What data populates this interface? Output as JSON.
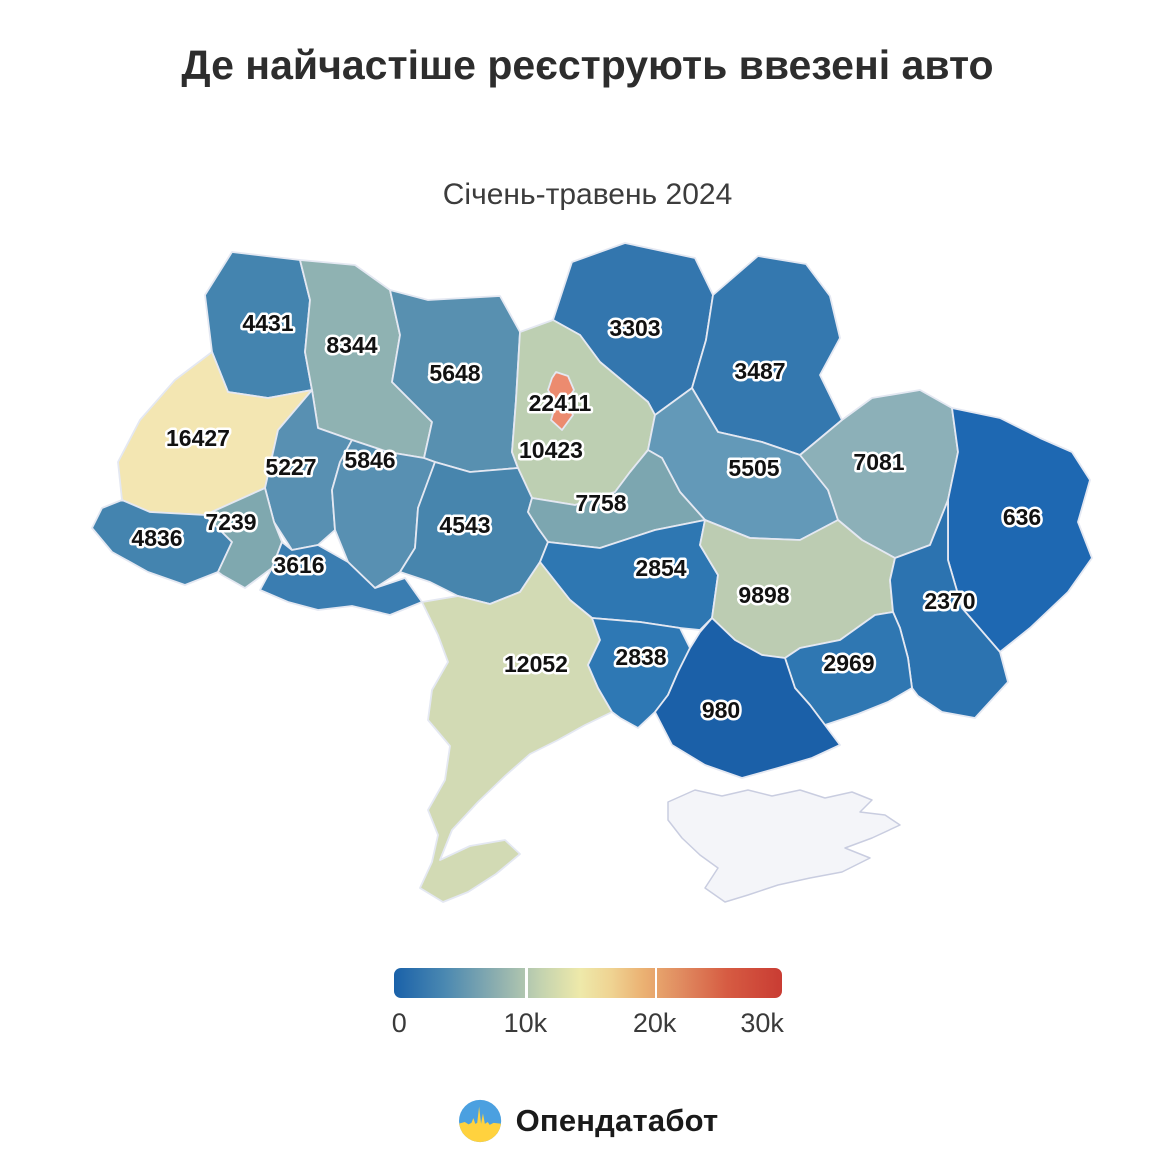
{
  "title": "Де найчастіше реєструють ввезені авто",
  "subtitle": "Січень-травень 2024",
  "legend": {
    "ticks": [
      "0",
      "10k",
      "20k",
      "30k"
    ],
    "gradient_colors": [
      "#1A61A9",
      "#4A88B1",
      "#8FB0AF",
      "#C4D3AF",
      "#EEE9AA",
      "#EFD392",
      "#EBB273",
      "#E08B60",
      "#D65B42",
      "#C93C33"
    ]
  },
  "footer": {
    "brand": "Опендатабот"
  },
  "chart_data": {
    "type": "choropleth",
    "title": "Де найчастіше реєструють ввезені авто",
    "subtitle": "Січень-травень 2024",
    "colorbar": {
      "min": 0,
      "max": 30000,
      "tick_values": [
        0,
        10000,
        20000,
        30000
      ],
      "tick_labels": [
        "0",
        "10k",
        "20k",
        "30k"
      ]
    },
    "regions": [
      {
        "id": "volyn",
        "value": 4431,
        "color": "#4484AF"
      },
      {
        "id": "rivne",
        "value": 8344,
        "color": "#8FB2B2"
      },
      {
        "id": "zhytomyr",
        "value": 5648,
        "color": "#5890B0"
      },
      {
        "id": "chernihiv",
        "value": 3303,
        "color": "#3376AE"
      },
      {
        "id": "sumy",
        "value": 3487,
        "color": "#3478AF"
      },
      {
        "id": "kyiv-oblast",
        "value": 10423,
        "color": "#BDCFB2"
      },
      {
        "id": "kyiv-city",
        "value": 22411,
        "color": "#EC8B6F"
      },
      {
        "id": "lviv",
        "value": 16427,
        "color": "#F3E6B2"
      },
      {
        "id": "ternopil",
        "value": 5227,
        "color": "#5890B2"
      },
      {
        "id": "khmelnytskyi",
        "value": 5846,
        "color": "#5890B2"
      },
      {
        "id": "poltava",
        "value": 5505,
        "color": "#6399B8"
      },
      {
        "id": "kharkiv",
        "value": 7081,
        "color": "#8CB0B8"
      },
      {
        "id": "luhansk",
        "value": 636,
        "color": "#1E68B2"
      },
      {
        "id": "zakarpattia",
        "value": 4836,
        "color": "#4484AF"
      },
      {
        "id": "ivano-frankivsk",
        "value": 7239,
        "color": "#7FA8AF"
      },
      {
        "id": "chernivtsi",
        "value": 3616,
        "color": "#3A7DB1"
      },
      {
        "id": "vinnytsia",
        "value": 4543,
        "color": "#4785AD"
      },
      {
        "id": "cherkasy",
        "value": 7758,
        "color": "#7CA6B0"
      },
      {
        "id": "kirovohrad",
        "value": 2854,
        "color": "#2E77B2"
      },
      {
        "id": "dnipro",
        "value": 9898,
        "color": "#BCCCB2"
      },
      {
        "id": "donetsk",
        "value": 2370,
        "color": "#2C73B0"
      },
      {
        "id": "odesa",
        "value": 12052,
        "color": "#D2DAB4"
      },
      {
        "id": "mykolaiv",
        "value": 2838,
        "color": "#2E78B4"
      },
      {
        "id": "zaporizhzhia",
        "value": 2969,
        "color": "#2F77B2"
      },
      {
        "id": "kherson",
        "value": 980,
        "color": "#1B60A8"
      },
      {
        "id": "crimea",
        "value": null,
        "color": "#F4F5F9"
      }
    ]
  }
}
